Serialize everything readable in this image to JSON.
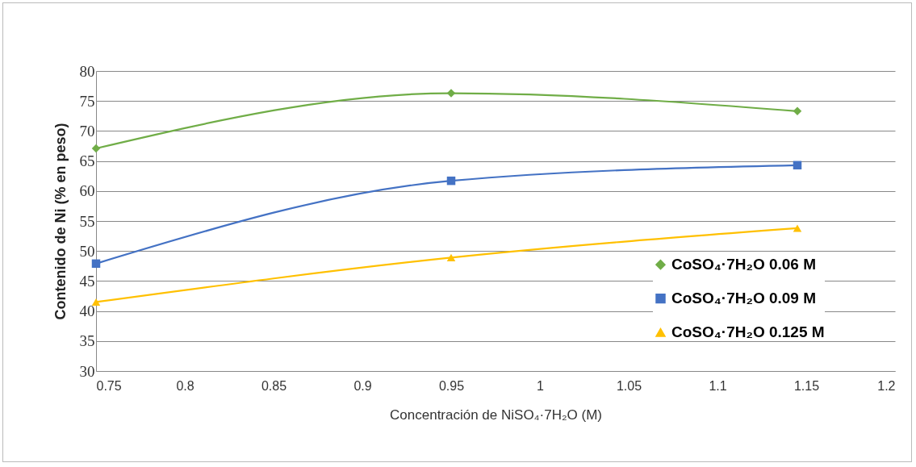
{
  "chart_data": {
    "type": "line",
    "xlabel": "Concentración de NiSO₄·7H₂O (M)",
    "ylabel": "Contenido de Ni (% en  peso)",
    "x": [
      0.75,
      0.95,
      1.145
    ],
    "series": [
      {
        "name": "CoSO₄·7H₂O 0.06 M",
        "color": "#70ad47",
        "marker": "diamond",
        "values": [
          67.1,
          76.3,
          73.3
        ]
      },
      {
        "name": "CoSO₄·7H₂O 0.09 M",
        "color": "#4472c4",
        "marker": "square",
        "values": [
          47.9,
          61.7,
          64.3
        ]
      },
      {
        "name": "CoSO₄·7H₂O 0.125 M",
        "color": "#ffc000",
        "marker": "triangle",
        "values": [
          41.5,
          48.9,
          53.8
        ]
      }
    ],
    "xlim": [
      0.75,
      1.2
    ],
    "xticks": [
      0.75,
      0.8,
      0.85,
      0.9,
      0.95,
      1,
      1.05,
      1.1,
      1.15,
      1.2
    ],
    "ylim": [
      30,
      80
    ],
    "yticks": [
      30,
      35,
      40,
      45,
      50,
      55,
      60,
      65,
      70,
      75,
      80
    ],
    "grid": "y",
    "legend": "right",
    "line_style": "solid"
  }
}
